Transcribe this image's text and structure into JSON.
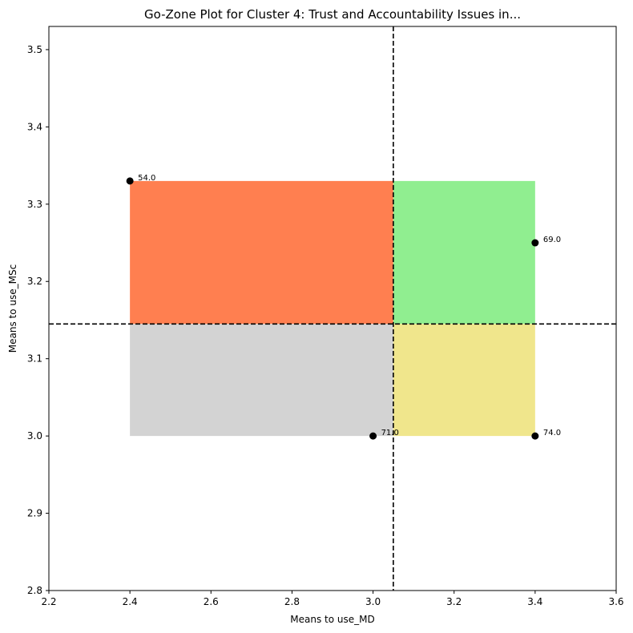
{
  "chart_data": {
    "type": "scatter",
    "title": "Go-Zone Plot for Cluster 4: Trust and Accountability Issues in...",
    "xlabel": "Means to use_MD",
    "ylabel": "Means to use_MSc",
    "xlim": [
      2.2,
      3.6
    ],
    "ylim": [
      2.8,
      3.53
    ],
    "x_ticks": [
      "2.2",
      "2.4",
      "2.6",
      "2.8",
      "3.0",
      "3.2",
      "3.4",
      "3.6"
    ],
    "y_ticks": [
      "2.8",
      "2.9",
      "3.0",
      "3.1",
      "3.2",
      "3.3",
      "3.4",
      "3.5"
    ],
    "grid": false,
    "points": [
      {
        "label": "54.0",
        "x": 2.4,
        "y": 3.33
      },
      {
        "label": "69.0",
        "x": 3.4,
        "y": 3.25
      },
      {
        "label": "71.0",
        "x": 3.0,
        "y": 3.0
      },
      {
        "label": "74.0",
        "x": 3.4,
        "y": 3.0
      }
    ],
    "x_mean": 3.05,
    "y_mean": 3.145,
    "zones": [
      {
        "name": "upper-left",
        "x": [
          2.4,
          3.05
        ],
        "y": [
          3.145,
          3.33
        ],
        "color": "#ff7f50"
      },
      {
        "name": "upper-right",
        "x": [
          3.05,
          3.4
        ],
        "y": [
          3.145,
          3.33
        ],
        "color": "#90ee90"
      },
      {
        "name": "lower-left",
        "x": [
          2.4,
          3.05
        ],
        "y": [
          3.0,
          3.145
        ],
        "color": "#d3d3d3"
      },
      {
        "name": "lower-right",
        "x": [
          3.05,
          3.4
        ],
        "y": [
          3.0,
          3.145
        ],
        "color": "#f0e68c"
      }
    ],
    "point_color": "#000000",
    "mean_line_color": "#000000"
  }
}
